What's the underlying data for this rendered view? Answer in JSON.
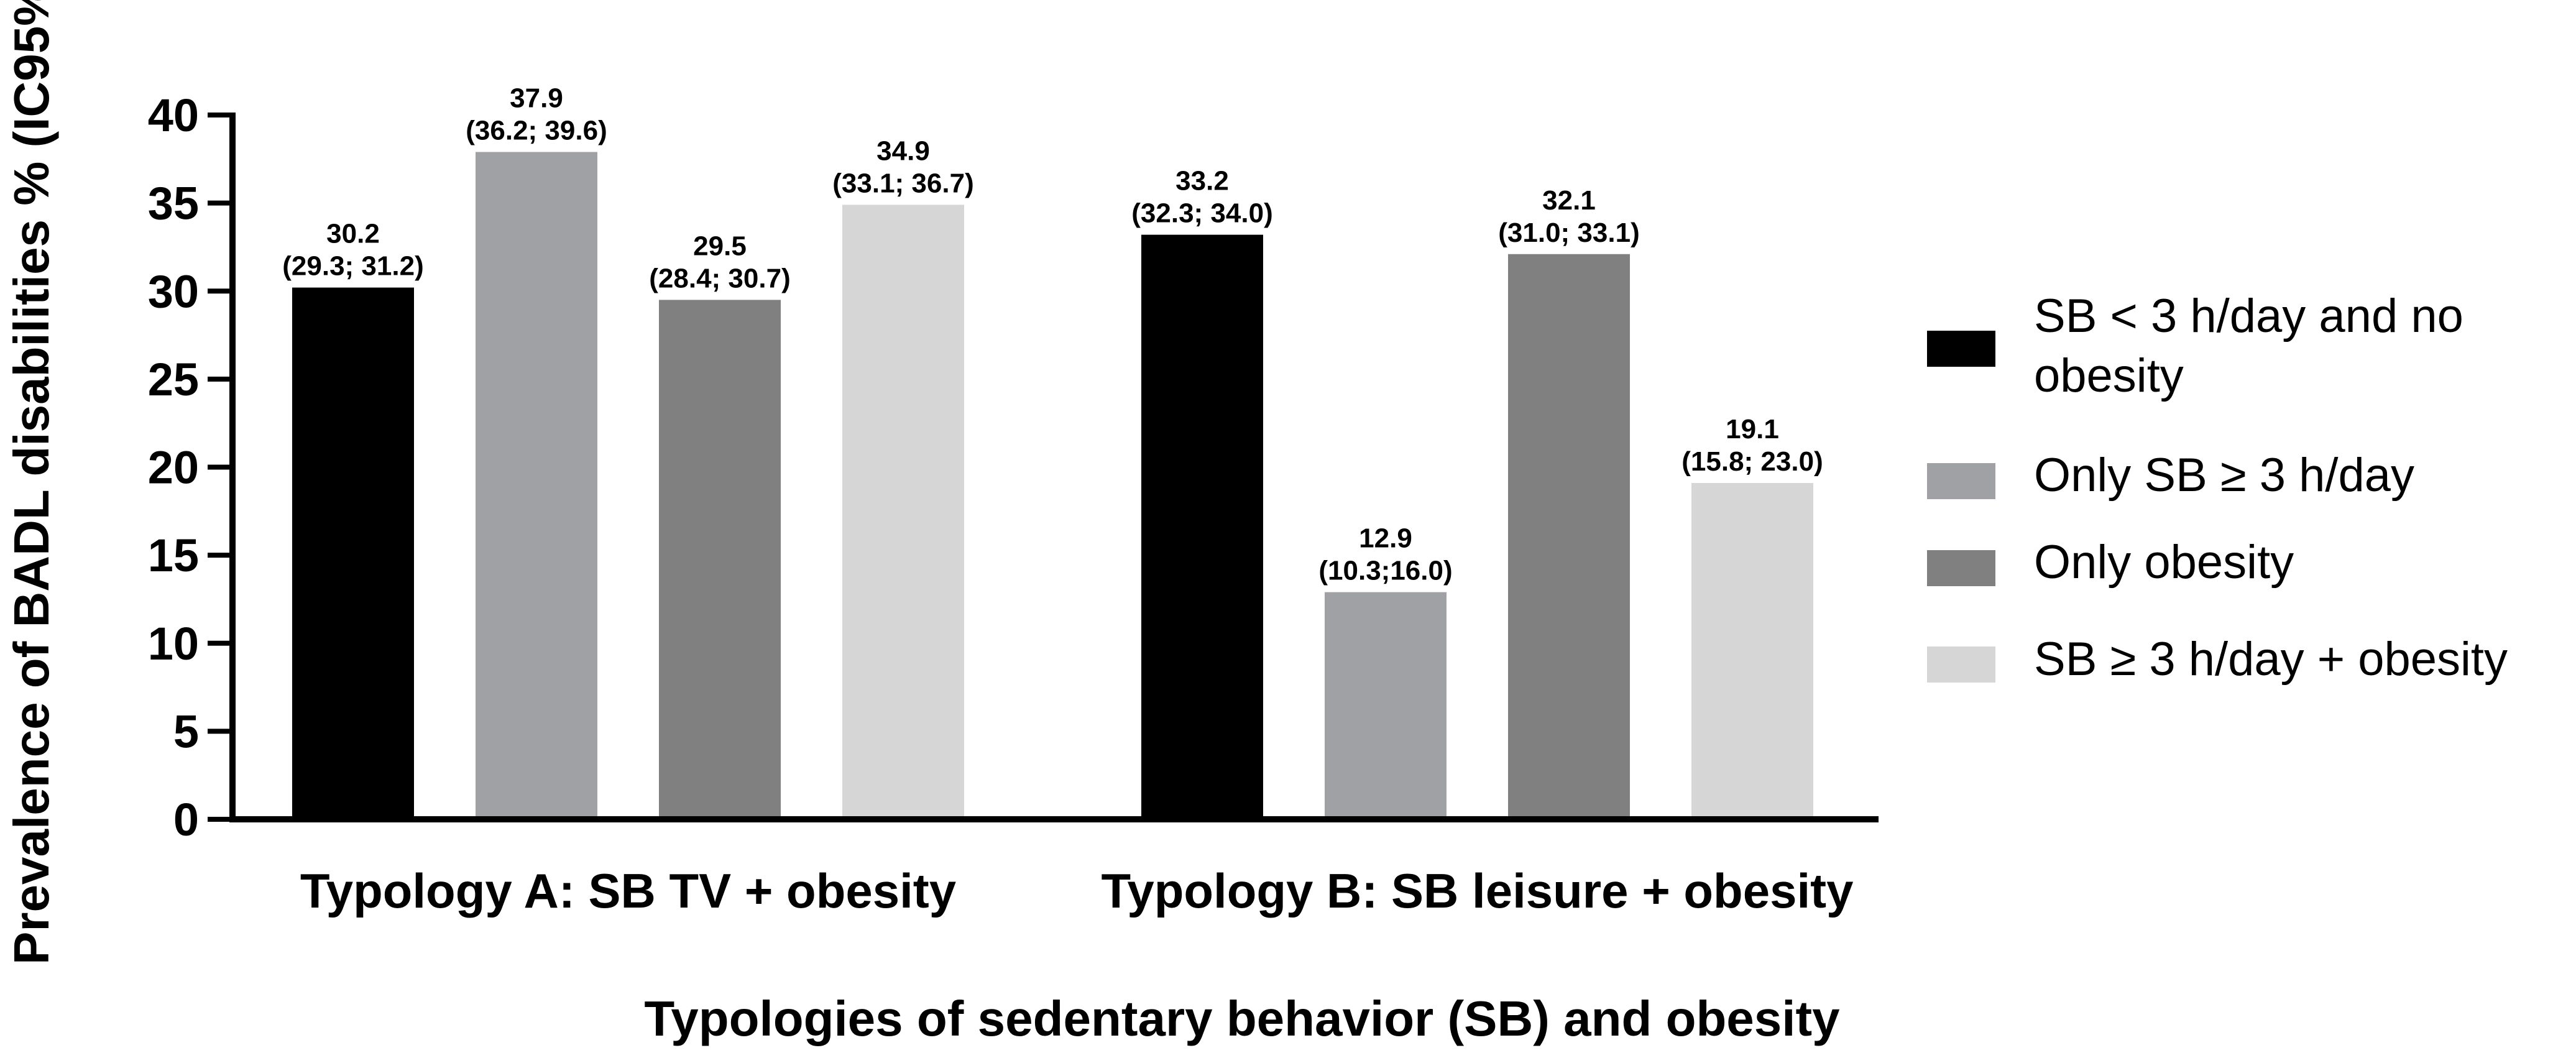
{
  "chart_data": {
    "type": "bar",
    "title": "",
    "xlabel": "Typologies of sedentary behavior (SB) and obesity",
    "ylabel": "Prevalence of BADL disabilities % (IC95%)",
    "ylim": [
      0,
      40
    ],
    "yticks": [
      "0",
      "5",
      "10",
      "15",
      "20",
      "25",
      "30",
      "35",
      "40"
    ],
    "ytick_values": [
      0,
      5,
      10,
      15,
      20,
      25,
      30,
      35,
      40
    ],
    "categories": [
      "Typology A: SB TV + obesity",
      "Typology B: SB leisure + obesity"
    ],
    "legend_position": "right",
    "series": [
      {
        "name": "SB < 3 h/day and no obesity",
        "legend_lines": [
          "SB < 3 h/day and no",
          "obesity"
        ],
        "color": "#000000",
        "values": [
          30.2,
          33.2
        ],
        "value_labels": [
          "30.2",
          "33.2"
        ],
        "ci_labels": [
          "(29.3; 31.2)",
          "(32.3; 34.0)"
        ]
      },
      {
        "name": "Only SB ≥ 3 h/day",
        "legend_lines": [
          "Only SB ≥ 3 h/day"
        ],
        "color": "#a0a1a5",
        "values": [
          37.9,
          12.9
        ],
        "value_labels": [
          "37.9",
          "12.9"
        ],
        "ci_labels": [
          "(36.2; 39.6)",
          "(10.3;16.0)"
        ]
      },
      {
        "name": "Only obesity",
        "legend_lines": [
          "Only obesity"
        ],
        "color": "#808080",
        "values": [
          29.5,
          32.1
        ],
        "value_labels": [
          "29.5",
          "32.1"
        ],
        "ci_labels": [
          "(28.4; 30.7)",
          "(31.0; 33.1)"
        ]
      },
      {
        "name": "SB ≥ 3 h/day + obesity",
        "legend_lines": [
          "SB ≥ 3 h/day + obesity"
        ],
        "color": "#d6d6d6",
        "values": [
          34.9,
          19.1
        ],
        "value_labels": [
          "34.9",
          "19.1"
        ],
        "ci_labels": [
          "(33.1; 36.7)",
          "(15.8; 23.0)"
        ]
      }
    ]
  }
}
